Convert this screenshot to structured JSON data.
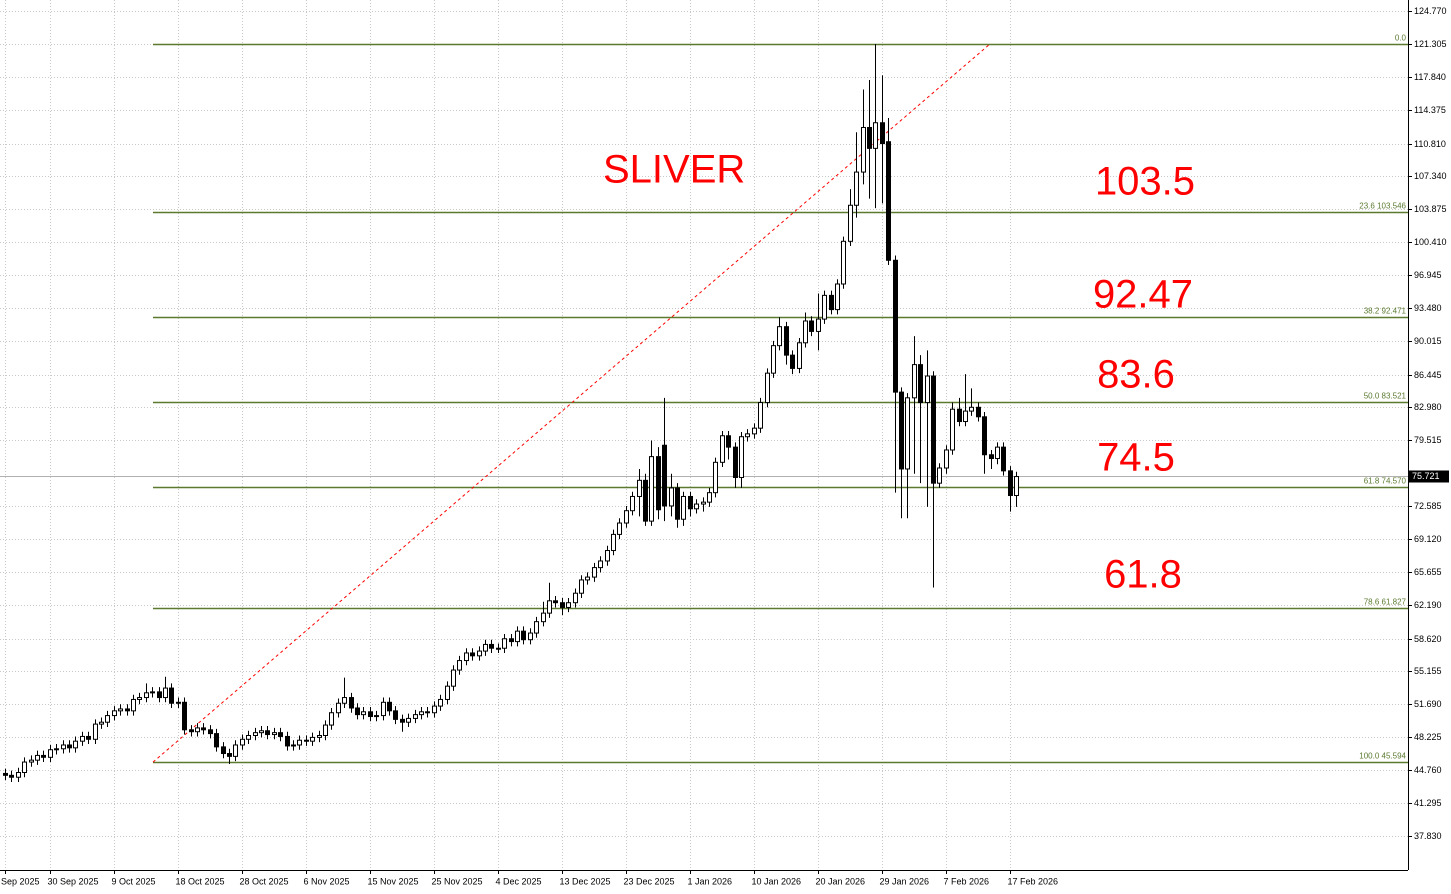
{
  "chart_data": {
    "type": "candlestick",
    "categories": [
      "Sep 2025",
      null,
      null,
      null,
      null,
      null,
      null,
      "30 Sep 2025",
      null,
      null,
      null,
      null,
      null,
      null,
      null,
      null,
      null,
      "9 Oct 2025",
      null,
      null,
      null,
      null,
      null,
      null,
      null,
      null,
      null,
      "18 Oct 2025",
      null,
      null,
      null,
      null,
      null,
      null,
      null,
      null,
      null,
      "28 Oct 2025",
      null,
      null,
      null,
      null,
      null,
      null,
      null,
      null,
      null,
      "6 Nov 2025",
      null,
      null,
      null,
      null,
      null,
      null,
      null,
      null,
      null,
      "15 Nov 2025",
      null,
      null,
      null,
      null,
      null,
      null,
      null,
      null,
      null,
      "25 Nov 2025",
      null,
      null,
      null,
      null,
      null,
      null,
      null,
      null,
      null,
      "4 Dec 2025",
      null,
      null,
      null,
      null,
      null,
      null,
      null,
      null,
      null,
      "13 Dec 2025",
      null,
      null,
      null,
      null,
      null,
      null,
      null,
      null,
      null,
      "23 Dec 2025",
      null,
      null,
      null,
      null,
      null,
      null,
      null,
      null,
      null,
      "1 Jan 2026",
      null,
      null,
      null,
      null,
      null,
      null,
      null,
      null,
      null,
      "10 Jan 2026",
      null,
      null,
      null,
      null,
      null,
      null,
      null,
      null,
      null,
      "20 Jan 2026",
      null,
      null,
      null,
      null,
      null,
      null,
      null,
      null,
      null,
      "29 Jan 2026",
      null,
      null,
      null,
      null,
      null,
      null,
      null,
      null,
      null,
      "7 Feb 2026",
      null,
      null,
      null,
      null,
      null,
      null,
      null,
      null,
      null,
      "17 Feb 2026",
      null
    ],
    "open": [
      44.4,
      44.2,
      44.0,
      44.5,
      45.6,
      45.8,
      46.3,
      46.1,
      46.9,
      47.0,
      47.4,
      47.1,
      47.8,
      48.3,
      48.0,
      49.6,
      49.8,
      50.5,
      51.0,
      51.2,
      51.0,
      52.2,
      52.4,
      52.9,
      53.0,
      52.4,
      53.4,
      51.8,
      51.9,
      49.0,
      48.8,
      49.2,
      49.0,
      48.6,
      47.2,
      46.5,
      46.2,
      47.4,
      48.0,
      48.4,
      48.7,
      48.9,
      48.5,
      48.7,
      48.3,
      47.3,
      47.4,
      47.9,
      47.8,
      48.2,
      48.4,
      49.5,
      50.8,
      51.8,
      52.4,
      51.3,
      50.6,
      50.9,
      50.4,
      50.5,
      51.9,
      51.0,
      50.1,
      49.8,
      50.2,
      50.6,
      50.9,
      50.8,
      51.5,
      52.2,
      53.6,
      55.3,
      56.3,
      57.1,
      56.8,
      57.3,
      58.0,
      57.6,
      57.6,
      58.6,
      58.3,
      59.4,
      58.5,
      59.2,
      60.4,
      61.3,
      62.6,
      62.4,
      61.9,
      62.4,
      63.4,
      64.8,
      65.1,
      66.1,
      66.8,
      67.9,
      69.6,
      70.8,
      72.1,
      73.6,
      75.3,
      71.0,
      77.8,
      79.0,
      72.6,
      74.5,
      71.2,
      73.6,
      72.3,
      72.8,
      73.0,
      74.0,
      77.2,
      80.0,
      78.8,
      75.6,
      79.9,
      80.2,
      80.8,
      83.5,
      86.6,
      89.5,
      91.5,
      88.5,
      87.1,
      89.8,
      92.1,
      91.0,
      92.3,
      94.8,
      93.3,
      96.0,
      100.5,
      104.3,
      107.8,
      112.5,
      110.3,
      113.0,
      111.0,
      98.5,
      84.6,
      76.5,
      84.0,
      87.5,
      83.5,
      86.3,
      75.0,
      76.6,
      78.5,
      82.8,
      81.5,
      82.6,
      83.0,
      82.0,
      78.0,
      77.6,
      78.8,
      76.3,
      73.7
    ],
    "high": [
      44.9,
      44.7,
      45.0,
      46.1,
      46.3,
      46.8,
      46.8,
      47.4,
      47.5,
      47.9,
      47.9,
      48.3,
      48.8,
      48.8,
      50.1,
      50.3,
      51.0,
      51.5,
      51.7,
      51.7,
      52.7,
      52.9,
      53.9,
      53.5,
      53.5,
      54.6,
      53.9,
      52.4,
      52.4,
      49.5,
      49.7,
      49.7,
      49.5,
      49.1,
      47.7,
      47.0,
      47.9,
      48.5,
      48.9,
      49.2,
      49.4,
      49.4,
      49.2,
      49.2,
      48.8,
      47.9,
      48.4,
      48.4,
      48.7,
      48.9,
      50.0,
      51.3,
      52.3,
      54.5,
      52.9,
      51.8,
      51.4,
      51.4,
      51.0,
      52.4,
      52.4,
      51.5,
      50.6,
      50.7,
      51.1,
      51.4,
      51.4,
      52.0,
      52.7,
      54.1,
      55.8,
      56.8,
      57.6,
      57.6,
      57.8,
      58.5,
      58.5,
      58.1,
      59.1,
      59.1,
      59.9,
      59.9,
      59.7,
      60.9,
      62.5,
      64.5,
      63.1,
      62.9,
      62.9,
      63.9,
      65.3,
      65.6,
      66.6,
      67.3,
      68.4,
      70.1,
      71.3,
      72.6,
      74.1,
      76.5,
      76.0,
      79.5,
      78.8,
      84.0,
      76.0,
      75.0,
      74.1,
      74.1,
      73.3,
      73.5,
      74.5,
      77.7,
      80.5,
      80.5,
      79.3,
      80.4,
      80.7,
      81.3,
      84.0,
      87.1,
      90.0,
      92.5,
      92.0,
      89.0,
      90.3,
      93.0,
      92.6,
      95.0,
      95.3,
      95.3,
      96.5,
      101.0,
      106.0,
      112.0,
      116.5,
      117.5,
      121.3,
      118.0,
      113.5,
      99.0,
      85.1,
      84.5,
      90.5,
      88.5,
      89.0,
      86.8,
      77.1,
      79.0,
      83.5,
      84.0,
      86.5,
      85.0,
      83.5,
      82.5,
      78.5,
      79.3,
      79.3,
      76.8,
      76.2
    ],
    "low": [
      43.7,
      43.5,
      43.5,
      44.0,
      45.1,
      45.3,
      45.6,
      45.6,
      46.4,
      46.5,
      46.6,
      46.6,
      47.3,
      47.5,
      47.5,
      49.1,
      49.3,
      50.0,
      50.5,
      50.5,
      50.5,
      51.7,
      51.9,
      52.4,
      51.9,
      51.9,
      51.3,
      51.3,
      48.5,
      48.3,
      48.3,
      48.5,
      48.1,
      46.7,
      46.0,
      45.4,
      45.7,
      46.9,
      47.5,
      47.9,
      48.2,
      48.0,
      48.0,
      47.8,
      46.8,
      46.8,
      46.9,
      47.3,
      47.3,
      47.7,
      47.9,
      49.0,
      50.3,
      51.3,
      50.8,
      50.1,
      50.1,
      49.9,
      49.9,
      50.0,
      50.5,
      49.6,
      48.8,
      49.3,
      49.7,
      50.1,
      50.3,
      50.3,
      51.0,
      51.7,
      53.1,
      54.8,
      55.8,
      56.3,
      56.3,
      56.8,
      57.1,
      57.1,
      57.1,
      57.8,
      57.8,
      58.0,
      58.0,
      58.7,
      59.9,
      60.8,
      61.9,
      61.1,
      61.4,
      61.9,
      62.9,
      64.3,
      64.6,
      65.6,
      66.3,
      67.4,
      69.1,
      70.3,
      71.6,
      71.5,
      70.5,
      70.5,
      71.2,
      71.0,
      71.5,
      70.3,
      70.5,
      71.5,
      71.8,
      72.0,
      72.5,
      73.5,
      76.7,
      77.5,
      74.5,
      74.5,
      79.4,
      79.7,
      80.3,
      83.0,
      86.1,
      89.0,
      87.5,
      86.5,
      86.6,
      89.3,
      90.5,
      89.0,
      91.8,
      92.8,
      92.8,
      95.5,
      100.0,
      103.0,
      106.5,
      105.0,
      104.0,
      104.5,
      98.0,
      74.0,
      71.3,
      71.3,
      76.0,
      75.0,
      72.5,
      64.0,
      74.5,
      76.0,
      78.0,
      81.0,
      81.0,
      82.1,
      81.5,
      76.0,
      76.5,
      77.0,
      75.8,
      72.0,
      72.5
    ],
    "close": [
      44.2,
      44.0,
      44.5,
      45.6,
      45.8,
      46.3,
      46.1,
      46.9,
      47.0,
      47.4,
      47.1,
      47.8,
      48.3,
      48.0,
      49.6,
      49.8,
      50.5,
      51.0,
      51.2,
      51.0,
      52.2,
      52.4,
      52.9,
      53.0,
      52.4,
      53.4,
      51.8,
      51.9,
      49.0,
      48.8,
      49.2,
      49.0,
      48.6,
      47.2,
      46.5,
      46.2,
      47.4,
      48.0,
      48.4,
      48.7,
      48.9,
      48.5,
      48.7,
      48.3,
      47.3,
      47.4,
      47.9,
      47.8,
      48.2,
      48.4,
      49.5,
      50.8,
      51.8,
      52.4,
      51.3,
      50.6,
      50.9,
      50.4,
      50.5,
      51.9,
      51.0,
      50.1,
      49.8,
      50.2,
      50.6,
      50.9,
      50.8,
      51.5,
      52.2,
      53.6,
      55.3,
      56.3,
      57.1,
      56.8,
      57.3,
      58.0,
      57.6,
      57.6,
      58.6,
      58.3,
      59.4,
      58.5,
      59.2,
      60.4,
      61.3,
      62.6,
      62.4,
      61.9,
      62.4,
      63.4,
      64.8,
      65.1,
      66.1,
      66.8,
      67.9,
      69.6,
      70.8,
      72.1,
      73.6,
      75.3,
      71.0,
      77.8,
      72.2,
      72.6,
      74.5,
      71.2,
      73.6,
      72.3,
      72.8,
      73.0,
      74.0,
      77.2,
      80.0,
      78.8,
      75.6,
      79.9,
      80.2,
      80.8,
      83.5,
      86.6,
      89.5,
      91.5,
      88.5,
      87.1,
      89.8,
      92.1,
      91.0,
      92.3,
      94.8,
      93.3,
      96.0,
      100.5,
      104.3,
      107.8,
      112.5,
      110.3,
      113.0,
      110.8,
      98.5,
      84.6,
      76.5,
      84.0,
      87.5,
      83.5,
      86.3,
      75.0,
      76.6,
      78.5,
      82.8,
      81.5,
      82.6,
      83.0,
      82.0,
      78.0,
      77.6,
      78.8,
      76.3,
      73.7,
      75.7
    ],
    "up_color": "#ffffff",
    "down_color": "#000000",
    "ylim": [
      34.22,
      125.94
    ],
    "yticks": [
      {
        "value": 124.77,
        "label": "124.770"
      },
      121.305,
      {
        "value": 117.84,
        "label": "117.840"
      },
      114.375,
      {
        "value": 110.81,
        "label": "110.810"
      },
      {
        "value": 107.34,
        "label": "107.340"
      },
      103.875,
      {
        "value": 100.41,
        "label": "100.410"
      },
      96.945,
      {
        "value": 93.48,
        "label": "93.480"
      },
      90.015,
      86.445,
      {
        "value": 82.98,
        "label": "82.980"
      },
      79.515,
      72.585,
      {
        "value": 69.12,
        "label": "69.120"
      },
      65.655,
      {
        "value": 62.19,
        "label": "62.190"
      },
      {
        "value": 58.62,
        "label": "58.620"
      },
      55.155,
      {
        "value": 51.69,
        "label": "51.690"
      },
      48.225,
      {
        "value": 44.76,
        "label": "44.760"
      },
      41.295,
      {
        "value": 37.83,
        "label": "37.830"
      }
    ],
    "grid": true,
    "current_price": 75.721,
    "fib_color": "#5b7a2f",
    "fib_levels": [
      {
        "label": "0.0",
        "value": 121.305
      },
      {
        "label": "23.6 103.546",
        "value": 103.546
      },
      {
        "label": "38.2 92.471",
        "value": 92.471
      },
      {
        "label": "50.0 83.521",
        "value": 83.521
      },
      {
        "label": "61.8 74.570",
        "value": 74.57
      },
      {
        "label": "78.6 61.827",
        "value": 61.827
      },
      {
        "label": "100.0 45.594",
        "value": 45.594
      }
    ],
    "annotation_color": "#ff0000",
    "annotations": [
      "SLIVER",
      "103.5",
      "92.47",
      "83.6",
      "74.5",
      "61.8"
    ]
  }
}
